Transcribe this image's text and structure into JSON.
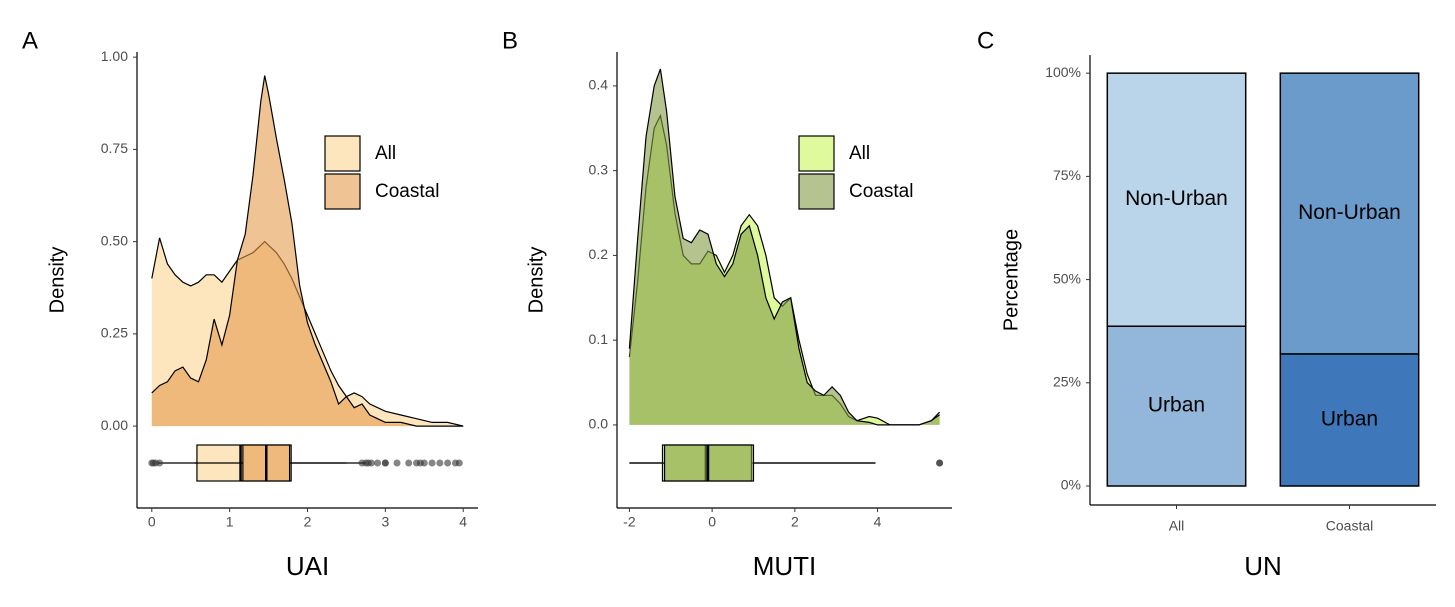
{
  "chart_data": [
    {
      "type": "density",
      "panel_label": "A",
      "x_label": "UAI",
      "y_label": "Density",
      "xlim": [
        -0.19,
        4.19
      ],
      "ylim": [
        -0.222,
        1.014
      ],
      "xticks": [
        0,
        1,
        2,
        3,
        4
      ],
      "yticks": [
        {
          "value": 0,
          "label": "0.00"
        },
        {
          "value": 0.25,
          "label": "0.25"
        },
        {
          "value": 0.5,
          "label": "0.50"
        },
        {
          "value": 0.75,
          "label": "0.75"
        },
        {
          "value": 1,
          "label": "1.00"
        }
      ],
      "legend_position": "upper-right",
      "x": [
        0,
        0.1,
        0.2,
        0.3,
        0.4,
        0.5,
        0.6,
        0.7,
        0.8,
        0.9,
        1.0,
        1.1,
        1.2,
        1.3,
        1.4,
        1.45,
        1.5,
        1.6,
        1.7,
        1.8,
        1.9,
        2.0,
        2.1,
        2.2,
        2.3,
        2.4,
        2.5,
        2.6,
        2.7,
        2.8,
        3.0,
        3.2,
        3.4,
        3.6,
        3.8,
        4.0
      ],
      "series": [
        {
          "name": "All",
          "color": "#FDE6BD",
          "opacity": 1,
          "values": [
            0.4,
            0.51,
            0.44,
            0.41,
            0.39,
            0.38,
            0.39,
            0.41,
            0.41,
            0.39,
            0.42,
            0.45,
            0.46,
            0.47,
            0.49,
            0.5,
            0.49,
            0.47,
            0.44,
            0.4,
            0.35,
            0.3,
            0.25,
            0.2,
            0.15,
            0.11,
            0.08,
            0.09,
            0.08,
            0.06,
            0.04,
            0.03,
            0.02,
            0.01,
            0.01,
            0.0
          ],
          "box": {
            "whisker_low": 0.08,
            "q1": 0.58,
            "median": 1.14,
            "q3": 1.79,
            "whisker_high": 2.75,
            "outliers": [
              0,
              0.02,
              0.05,
              0.1,
              2.78,
              2.82,
              2.9,
              3.0,
              3.15,
              3.3,
              3.4,
              3.45,
              3.5,
              3.6,
              3.7,
              3.8,
              3.9,
              3.95
            ]
          }
        },
        {
          "name": "Coastal",
          "color": "#E49B4C",
          "opacity": 0.6,
          "values": [
            0.09,
            0.11,
            0.12,
            0.15,
            0.16,
            0.13,
            0.12,
            0.18,
            0.29,
            0.22,
            0.3,
            0.45,
            0.52,
            0.68,
            0.88,
            0.95,
            0.9,
            0.78,
            0.67,
            0.55,
            0.38,
            0.28,
            0.22,
            0.17,
            0.12,
            0.06,
            0.08,
            0.05,
            0.06,
            0.03,
            0.01,
            0.01,
            0.0,
            0.0,
            0.0,
            0.0
          ],
          "box": {
            "whisker_low": 0.55,
            "q1": 1.17,
            "median": 1.47,
            "q3": 1.77,
            "whisker_high": 2.5,
            "outliers": [
              2.7,
              2.75,
              3.0
            ]
          }
        }
      ]
    },
    {
      "type": "density",
      "panel_label": "B",
      "x_label": "MUTI",
      "y_label": "Density",
      "xlim": [
        -2.3,
        5.8
      ],
      "ylim": [
        -0.098,
        0.44
      ],
      "xticks": [
        -2,
        0,
        2,
        4
      ],
      "yticks": [
        {
          "value": 0,
          "label": "0.0"
        },
        0.1,
        0.2,
        0.3,
        0.4
      ],
      "legend_position": "upper-right",
      "x": [
        -2,
        -1.8,
        -1.6,
        -1.4,
        -1.25,
        -1.1,
        -0.9,
        -0.7,
        -0.5,
        -0.3,
        -0.1,
        0.1,
        0.3,
        0.5,
        0.7,
        0.9,
        1.1,
        1.3,
        1.5,
        1.7,
        1.9,
        2.1,
        2.3,
        2.5,
        2.7,
        2.9,
        3.1,
        3.3,
        3.5,
        3.8,
        4.0,
        4.3,
        4.6,
        5.0,
        5.3,
        5.5
      ],
      "series": [
        {
          "name": "All",
          "color": "#DFFA9D",
          "opacity": 1,
          "values": [
            0.08,
            0.17,
            0.28,
            0.35,
            0.365,
            0.33,
            0.25,
            0.2,
            0.19,
            0.19,
            0.205,
            0.2,
            0.18,
            0.2,
            0.235,
            0.248,
            0.235,
            0.2,
            0.15,
            0.14,
            0.15,
            0.1,
            0.06,
            0.035,
            0.035,
            0.035,
            0.025,
            0.01,
            0.005,
            0.01,
            0.008,
            0.0,
            0.0,
            0.0,
            0.005,
            0.015
          ],
          "box": {
            "whisker_low": -2,
            "q1": -1.2,
            "median": -0.15,
            "q3": 0.95,
            "whisker_high": 3.95,
            "outliers": [
              5.5
            ]
          }
        },
        {
          "name": "Coastal",
          "color": "#829B46",
          "opacity": 0.6,
          "values": [
            0.09,
            0.22,
            0.34,
            0.4,
            0.42,
            0.37,
            0.27,
            0.22,
            0.215,
            0.23,
            0.225,
            0.19,
            0.175,
            0.19,
            0.225,
            0.235,
            0.2,
            0.15,
            0.125,
            0.145,
            0.15,
            0.09,
            0.05,
            0.04,
            0.035,
            0.045,
            0.035,
            0.015,
            0.005,
            0.003,
            0.0,
            0.0,
            0.0,
            0.0,
            0.005,
            0.012
          ],
          "box": {
            "whisker_low": -2,
            "q1": -1.15,
            "median": -0.1,
            "q3": 1.0,
            "whisker_high": 3.95,
            "outliers": [
              5.5
            ]
          }
        }
      ]
    },
    {
      "type": "stacked-percent-bar",
      "panel_label": "C",
      "x_label": "UN",
      "y_label": "Percentage",
      "categories": [
        "All",
        "Coastal"
      ],
      "ylim": [
        -4.6,
        104.4
      ],
      "yticks": [
        {
          "value": 0,
          "label": "0%"
        },
        {
          "value": 25,
          "label": "25%"
        },
        {
          "value": 50,
          "label": "50%"
        },
        {
          "value": 75,
          "label": "75%"
        },
        {
          "value": 100,
          "label": "100%"
        }
      ],
      "series": [
        {
          "name": "Urban",
          "colors": [
            "#93B7DA",
            "#3F78BA"
          ],
          "values": [
            38.7,
            32.0
          ]
        },
        {
          "name": "Non-Urban",
          "colors": [
            "#BAD4EA",
            "#6B9BCB"
          ],
          "values": [
            61.3,
            68.0
          ]
        }
      ]
    }
  ]
}
